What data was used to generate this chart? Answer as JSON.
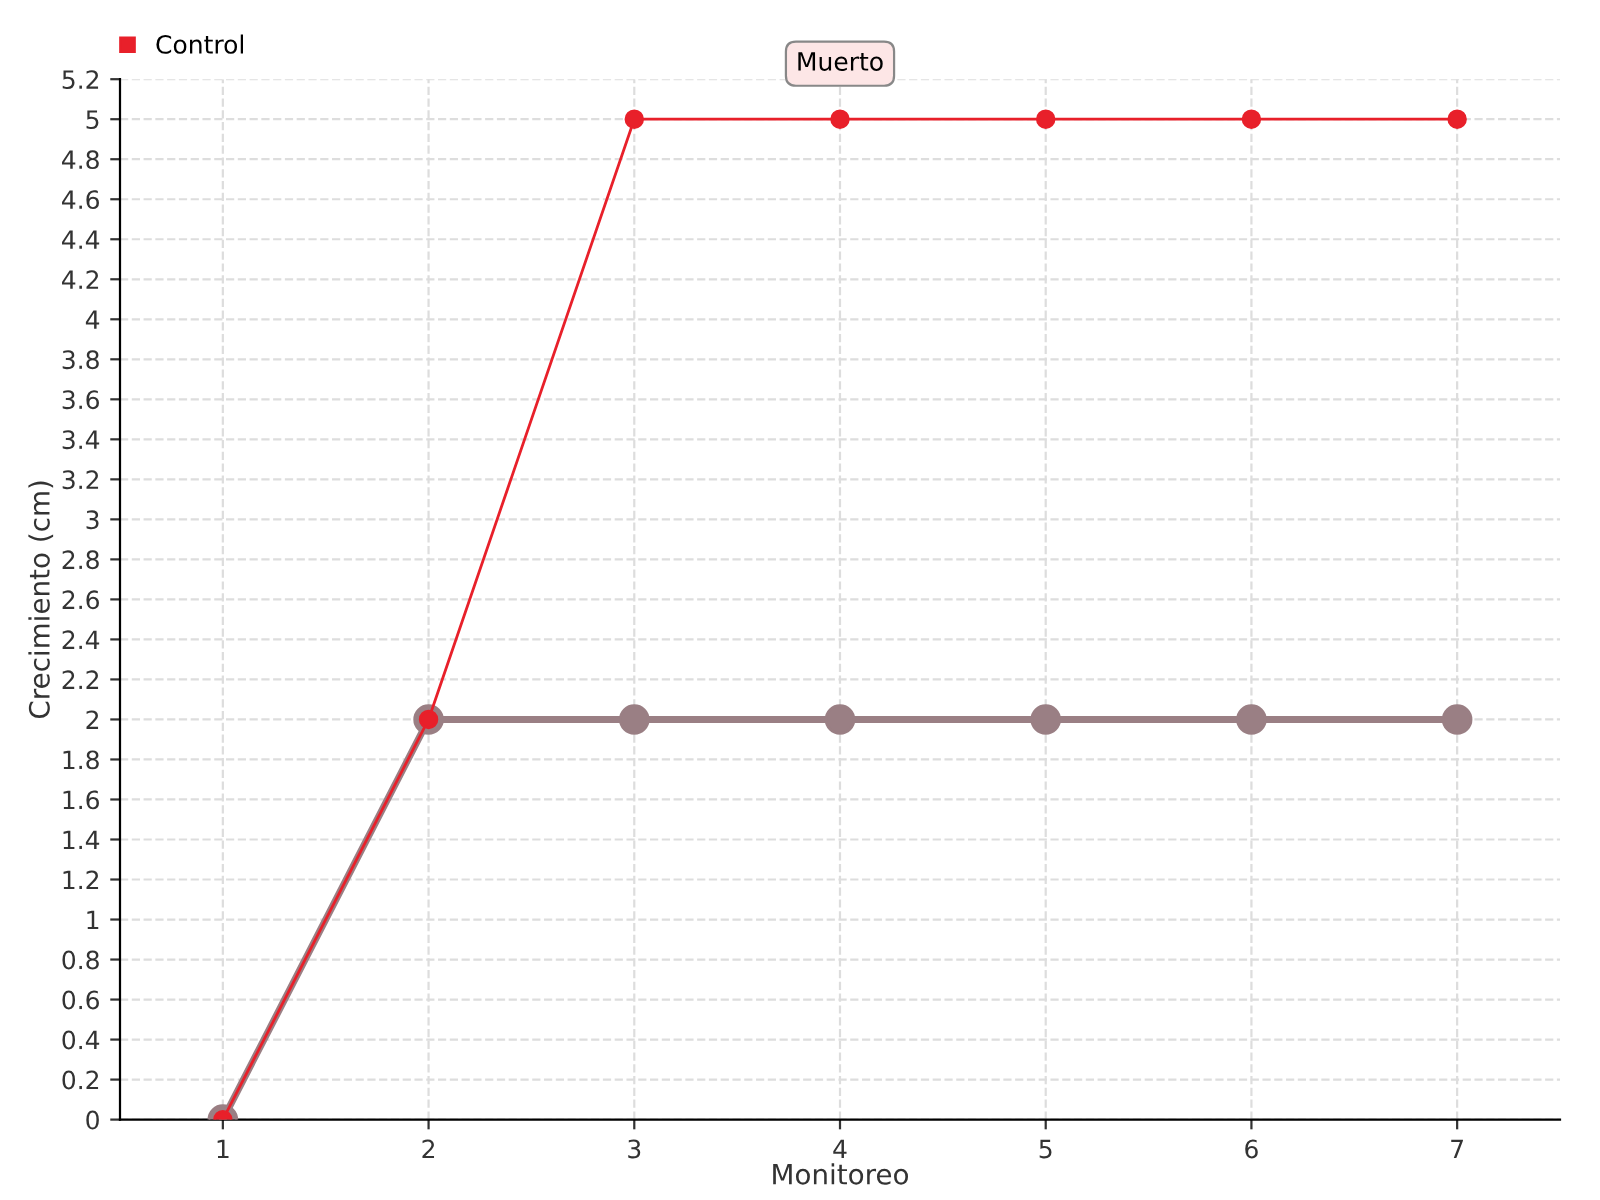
{
  "chart_data": {
    "type": "line",
    "xlabel": "Monitoreo",
    "ylabel": "Crecimiento (cm)",
    "x": [
      1,
      2,
      3,
      4,
      5,
      6,
      7
    ],
    "series": [
      {
        "color": "#9a7f84",
        "values": [
          0,
          2,
          2,
          2,
          2,
          2,
          2
        ]
      },
      {
        "name": "Control",
        "color": "#e8202a",
        "values": [
          0,
          2,
          5,
          5,
          5,
          5,
          5
        ]
      }
    ],
    "annotations": [
      {
        "text": "Muerto",
        "x": 4,
        "y": 5
      }
    ],
    "xlim": [
      0.5,
      7.5
    ],
    "xticks": [
      1,
      2,
      3,
      4,
      5,
      6,
      7
    ],
    "ylim": [
      0,
      5.2
    ],
    "yticks": [
      0,
      0.2,
      0.4,
      0.6,
      0.8,
      1,
      1.2,
      1.4,
      1.6,
      1.8,
      2,
      2.2,
      2.4,
      2.6,
      2.8,
      3,
      3.2,
      3.4,
      3.6,
      3.8,
      4,
      4.2,
      4.4,
      4.6,
      4.8,
      5,
      5.2
    ],
    "grid": true,
    "legend": "top left",
    "marker": "circle",
    "line_style": "solid"
  }
}
